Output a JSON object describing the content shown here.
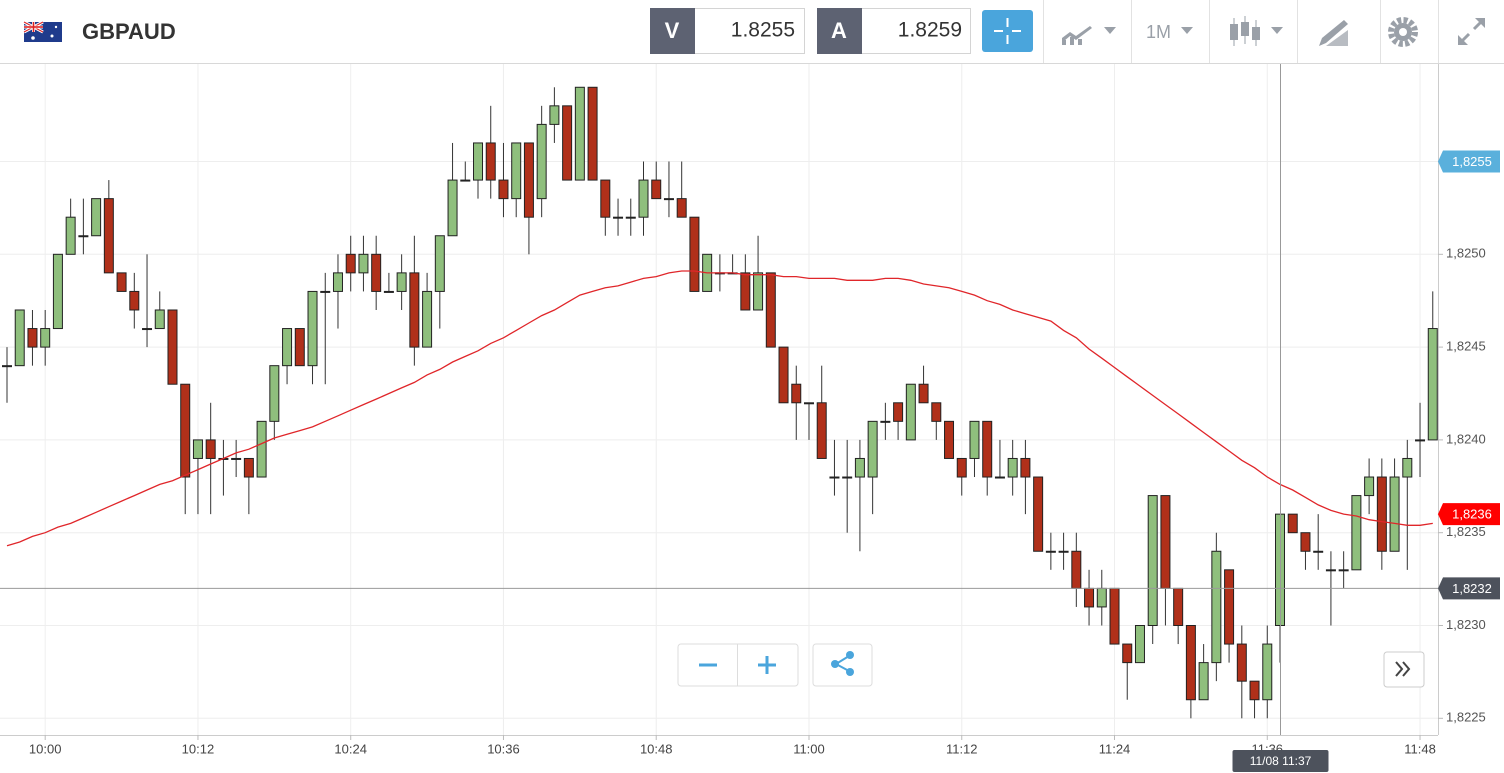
{
  "header": {
    "symbol": "GBPAUD",
    "sell_label": "V",
    "sell_price": "1.8255",
    "buy_label": "A",
    "buy_price": "1.8259",
    "timeframe": "1M"
  },
  "chart_data": {
    "type": "candlestick",
    "categories": [
      null,
      null,
      null,
      "10:00",
      null,
      null,
      null,
      null,
      null,
      null,
      null,
      null,
      null,
      null,
      null,
      "10:12",
      null,
      null,
      null,
      null,
      null,
      null,
      null,
      null,
      null,
      null,
      null,
      "10:24",
      null,
      null,
      null,
      null,
      null,
      null,
      null,
      null,
      null,
      null,
      null,
      "10:36",
      null,
      null,
      null,
      null,
      null,
      null,
      null,
      null,
      null,
      null,
      null,
      "10:48",
      null,
      null,
      null,
      null,
      null,
      null,
      null,
      null,
      null,
      null,
      null,
      "11:00",
      null,
      null,
      null,
      null,
      null,
      null,
      null,
      null,
      null,
      null,
      null,
      "11:12",
      null,
      null,
      null,
      null,
      null,
      null,
      null,
      null,
      null,
      null,
      null,
      "11:24",
      null,
      null,
      null,
      null,
      null,
      null,
      null,
      null,
      null,
      null,
      null,
      "11:36",
      null,
      null,
      null,
      null,
      null,
      null,
      null,
      null,
      null,
      null,
      null,
      "11:48",
      null
    ],
    "open": [
      1.8244,
      1.8244,
      1.8246,
      1.8245,
      1.8246,
      1.825,
      1.8251,
      1.8251,
      1.8253,
      1.8249,
      1.8248,
      1.8246,
      1.8246,
      1.8247,
      1.8243,
      1.8239,
      1.824,
      1.8239,
      1.8239,
      1.8239,
      1.8238,
      1.8241,
      1.8244,
      1.8246,
      1.8244,
      1.8248,
      1.8248,
      1.825,
      1.8249,
      1.825,
      1.8248,
      1.8248,
      1.8249,
      1.8245,
      1.8248,
      1.8251,
      1.8254,
      1.8254,
      1.8256,
      1.8254,
      1.8253,
      1.8256,
      1.8253,
      1.8257,
      1.8258,
      1.8254,
      1.8259,
      1.8254,
      1.8252,
      1.8252,
      1.8252,
      1.8254,
      1.8253,
      1.8253,
      1.8252,
      1.8248,
      1.8249,
      1.8249,
      1.8249,
      1.8247,
      1.8249,
      1.8245,
      1.8243,
      1.8242,
      1.8242,
      1.8238,
      1.8238,
      1.8238,
      1.8238,
      1.8241,
      1.8242,
      1.824,
      1.8243,
      1.8242,
      1.8241,
      1.8239,
      1.8239,
      1.8241,
      1.8238,
      1.8238,
      1.8239,
      1.8238,
      1.8234,
      1.8234,
      1.8234,
      1.8232,
      1.8231,
      1.8232,
      1.8229,
      1.8228,
      1.823,
      1.8237,
      1.8232,
      1.823,
      1.8226,
      1.8228,
      1.8233,
      1.8229,
      1.8227,
      1.8226,
      1.823,
      1.8236,
      1.8235,
      1.8234,
      1.8233,
      1.8233,
      1.8233,
      1.8237,
      1.8238,
      1.8234,
      1.8238,
      1.824,
      1.824
    ],
    "high": [
      1.8245,
      1.8247,
      1.8247,
      1.8247,
      1.825,
      1.8253,
      1.8253,
      1.8253,
      1.8254,
      1.8249,
      1.8249,
      1.825,
      1.8248,
      1.8247,
      1.8243,
      1.824,
      1.8242,
      1.824,
      1.824,
      1.8239,
      1.8241,
      1.8244,
      1.8246,
      1.8246,
      1.8248,
      1.8249,
      1.825,
      1.8251,
      1.8251,
      1.8251,
      1.8249,
      1.825,
      1.8251,
      1.8249,
      1.8251,
      1.8256,
      1.8255,
      1.8256,
      1.8258,
      1.8256,
      1.8256,
      1.8256,
      1.8258,
      1.8259,
      1.8258,
      1.8259,
      1.8259,
      1.8254,
      1.8253,
      1.8253,
      1.8255,
      1.8255,
      1.8255,
      1.8255,
      1.8252,
      1.825,
      1.825,
      1.825,
      1.825,
      1.8251,
      1.8249,
      1.8245,
      1.8244,
      1.8242,
      1.8244,
      1.824,
      1.824,
      1.824,
      1.8241,
      1.8242,
      1.8242,
      1.8243,
      1.8244,
      1.8242,
      1.8241,
      1.8239,
      1.8241,
      1.8241,
      1.824,
      1.824,
      1.824,
      1.8238,
      1.8235,
      1.8235,
      1.8235,
      1.8233,
      1.8233,
      1.8232,
      1.8229,
      1.823,
      1.8237,
      1.8237,
      1.8232,
      1.823,
      1.8229,
      1.8235,
      1.8233,
      1.823,
      1.8227,
      1.823,
      1.8236,
      1.8236,
      1.8235,
      1.8236,
      1.8234,
      1.8234,
      1.8237,
      1.8239,
      1.8239,
      1.8239,
      1.824,
      1.8242,
      1.8248
    ],
    "low": [
      1.8242,
      1.8244,
      1.8244,
      1.8244,
      1.8246,
      1.825,
      1.825,
      1.8251,
      1.8249,
      1.8248,
      1.8246,
      1.8245,
      1.8246,
      1.8243,
      1.8236,
      1.8236,
      1.8236,
      1.8237,
      1.8238,
      1.8236,
      1.8238,
      1.824,
      1.8243,
      1.8244,
      1.8243,
      1.8243,
      1.8246,
      1.8248,
      1.8248,
      1.8247,
      1.8248,
      1.8247,
      1.8244,
      1.8245,
      1.8246,
      1.8251,
      1.8254,
      1.8253,
      1.8253,
      1.8252,
      1.8252,
      1.825,
      1.8252,
      1.8256,
      1.8254,
      1.8254,
      1.8254,
      1.8251,
      1.8251,
      1.8251,
      1.8251,
      1.8253,
      1.8252,
      1.8252,
      1.8248,
      1.8248,
      1.8248,
      1.8249,
      1.8247,
      1.8247,
      1.8245,
      1.8242,
      1.824,
      1.824,
      1.8239,
      1.8237,
      1.8235,
      1.8234,
      1.8236,
      1.824,
      1.824,
      1.824,
      1.8242,
      1.824,
      1.8239,
      1.8237,
      1.8238,
      1.8237,
      1.8238,
      1.8237,
      1.8236,
      1.8234,
      1.8233,
      1.8233,
      1.8231,
      1.823,
      1.823,
      1.8229,
      1.8226,
      1.8228,
      1.8229,
      1.823,
      1.8229,
      1.8225,
      1.8226,
      1.8227,
      1.8228,
      1.8225,
      1.8225,
      1.8225,
      1.8228,
      1.8235,
      1.8233,
      1.8233,
      1.823,
      1.8232,
      1.8233,
      1.8236,
      1.8233,
      1.8234,
      1.8233,
      1.8238,
      1.824
    ],
    "close": [
      1.8244,
      1.8247,
      1.8245,
      1.8246,
      1.825,
      1.8252,
      1.8251,
      1.8253,
      1.8249,
      1.8248,
      1.8247,
      1.8246,
      1.8247,
      1.8243,
      1.8238,
      1.824,
      1.8239,
      1.8239,
      1.8239,
      1.8238,
      1.8241,
      1.8244,
      1.8246,
      1.8244,
      1.8248,
      1.8248,
      1.8249,
      1.8249,
      1.825,
      1.8248,
      1.8248,
      1.8249,
      1.8245,
      1.8248,
      1.8251,
      1.8254,
      1.8254,
      1.8256,
      1.8254,
      1.8253,
      1.8256,
      1.8252,
      1.8257,
      1.8258,
      1.8254,
      1.8259,
      1.8254,
      1.8252,
      1.8252,
      1.8252,
      1.8254,
      1.8253,
      1.8253,
      1.8252,
      1.8248,
      1.825,
      1.8249,
      1.8249,
      1.8247,
      1.8249,
      1.8245,
      1.8242,
      1.8242,
      1.8242,
      1.8239,
      1.8238,
      1.8238,
      1.8239,
      1.8241,
      1.8241,
      1.8241,
      1.8243,
      1.8242,
      1.8241,
      1.8239,
      1.8238,
      1.8241,
      1.8238,
      1.8238,
      1.8239,
      1.8238,
      1.8234,
      1.8234,
      1.8234,
      1.8232,
      1.8231,
      1.8232,
      1.8229,
      1.8228,
      1.823,
      1.8237,
      1.8232,
      1.823,
      1.8226,
      1.8228,
      1.8234,
      1.8229,
      1.8227,
      1.8226,
      1.8229,
      1.8236,
      1.8235,
      1.8234,
      1.8234,
      1.8233,
      1.8233,
      1.8237,
      1.8238,
      1.8234,
      1.8238,
      1.8239,
      1.824,
      1.8246
    ],
    "up_color": "#8fbf7d",
    "down_color": "#b0301a",
    "overlay": {
      "color": "#e0262a",
      "values": [
        1.82343,
        1.82345,
        1.82348,
        1.8235,
        1.82353,
        1.82355,
        1.82358,
        1.82361,
        1.82364,
        1.82367,
        1.8237,
        1.82373,
        1.82376,
        1.82378,
        1.82381,
        1.82384,
        1.82387,
        1.8239,
        1.82393,
        1.82395,
        1.82398,
        1.82401,
        1.82403,
        1.82405,
        1.82407,
        1.8241,
        1.82413,
        1.82416,
        1.82419,
        1.82422,
        1.82425,
        1.82428,
        1.82431,
        1.82435,
        1.82438,
        1.82442,
        1.82445,
        1.82448,
        1.82452,
        1.82455,
        1.82459,
        1.82463,
        1.82467,
        1.8247,
        1.82474,
        1.82478,
        1.8248,
        1.82482,
        1.82483,
        1.82485,
        1.82487,
        1.82488,
        1.8249,
        1.82491,
        1.82491,
        1.8249,
        1.8249,
        1.8249,
        1.82489,
        1.82489,
        1.82489,
        1.82488,
        1.82488,
        1.82487,
        1.82487,
        1.82487,
        1.82486,
        1.82486,
        1.82486,
        1.82487,
        1.82487,
        1.82486,
        1.82484,
        1.82483,
        1.82482,
        1.8248,
        1.82478,
        1.82475,
        1.82473,
        1.8247,
        1.82468,
        1.82466,
        1.82464,
        1.82459,
        1.82455,
        1.82449,
        1.82444,
        1.82439,
        1.82434,
        1.82429,
        1.82424,
        1.82419,
        1.82414,
        1.82409,
        1.82404,
        1.82399,
        1.82394,
        1.82389,
        1.82385,
        1.8238,
        1.82376,
        1.82373,
        1.82369,
        1.82365,
        1.82362,
        1.8236,
        1.82359,
        1.82357,
        1.82356,
        1.82355,
        1.82354,
        1.82354,
        1.82355
      ]
    },
    "ylim": [
      1.82241,
      1.82602
    ],
    "yticks": [
      {
        "value": 1.8225,
        "label": "1,8225"
      },
      {
        "value": 1.823,
        "label": "1,8230"
      },
      {
        "value": 1.8235,
        "label": "1,8235"
      },
      {
        "value": 1.824,
        "label": "1,8240"
      },
      {
        "value": 1.8245,
        "label": "1,8245"
      },
      {
        "value": 1.825,
        "label": "1,8250"
      },
      {
        "value": 1.8255,
        "label": "1,8255"
      }
    ],
    "grid": true,
    "price_tags": [
      {
        "value": 1.8255,
        "label": "1,8255",
        "color": "#5ab0dc"
      },
      {
        "value": 1.8236,
        "label": "1,8236",
        "color": "#ff0000"
      },
      {
        "value": 1.8232,
        "label": "1,8232",
        "color": "#4d525c"
      }
    ],
    "crosshair_label": "11/08 11:37"
  }
}
